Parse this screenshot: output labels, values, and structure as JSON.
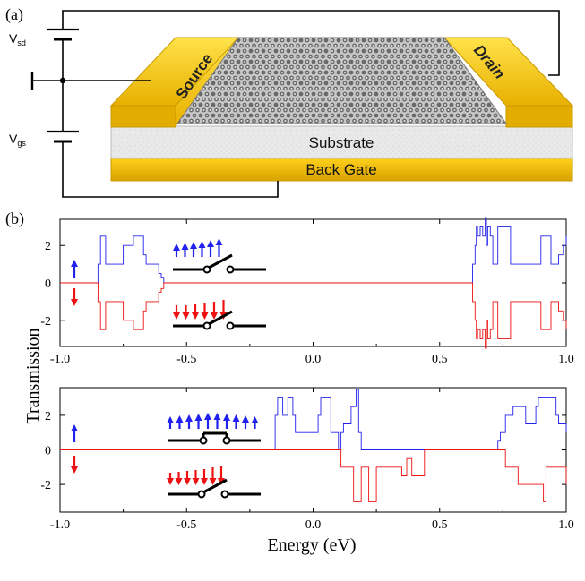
{
  "panel_a": {
    "label": "(a)",
    "vsd_main": "V",
    "vsd_sub": "sd",
    "vgs_main": "V",
    "vgs_sub": "gs",
    "source": "Source",
    "drain": "Drain",
    "substrate": "Substrate",
    "back_gate": "Back Gate"
  },
  "panel_b": {
    "label": "(b)",
    "y_axis_label": "Transmission",
    "x_axis_label": "Energy (eV)"
  },
  "colors": {
    "spin_up": "#2222ee",
    "spin_down": "#ee1111",
    "gold": "#f2c200",
    "gold_dark": "#c99a00",
    "substrate": "#e6e6e6"
  },
  "chart_data": [
    {
      "type": "line",
      "title": "",
      "xlabel": "",
      "ylabel": "Transmission",
      "xlim": [
        -1.0,
        1.0
      ],
      "ylim": [
        -3.4,
        3.4
      ],
      "xticks": [
        -1.0,
        -0.5,
        0.0,
        0.5,
        1.0
      ],
      "xtick_labels": [
        "-1.0",
        "-0.5",
        "0.0",
        "0.5",
        "1.0"
      ],
      "yticks": [
        2,
        0,
        -2
      ],
      "ytick_labels": [
        "2",
        "0",
        "-2"
      ],
      "series": [
        {
          "name": "spin up",
          "color": "#2222ee",
          "x": [
            -1.0,
            -0.86,
            -0.85,
            -0.84,
            -0.83,
            -0.82,
            -0.76,
            -0.75,
            -0.72,
            -0.71,
            -0.7,
            -0.69,
            -0.67,
            -0.66,
            -0.62,
            -0.61,
            -0.6,
            -0.59,
            -0.58,
            0.62,
            0.63,
            0.64,
            0.645,
            0.65,
            0.66,
            0.67,
            0.68,
            0.685,
            0.69,
            0.7,
            0.71,
            0.72,
            0.73,
            0.76,
            0.78,
            0.8,
            0.84,
            0.88,
            0.9,
            0.92,
            0.93,
            0.94,
            0.95,
            0.97,
            0.99,
            1.0
          ],
          "y": [
            0,
            0,
            1,
            2.5,
            2.5,
            1,
            1,
            2,
            2,
            2.5,
            2.5,
            2.5,
            1.5,
            1,
            1,
            0.5,
            0.3,
            0,
            0,
            0,
            1,
            2,
            3,
            2.5,
            3,
            2.5,
            3.5,
            2,
            3,
            2.5,
            1,
            1,
            3,
            3,
            1,
            1,
            1,
            1,
            2.5,
            2.5,
            2.5,
            1,
            1,
            1.5,
            2,
            2.5
          ]
        },
        {
          "name": "spin down",
          "color": "#ee1111",
          "x": [
            -1.0,
            -0.86,
            -0.85,
            -0.84,
            -0.83,
            -0.82,
            -0.76,
            -0.75,
            -0.72,
            -0.71,
            -0.7,
            -0.69,
            -0.67,
            -0.66,
            -0.62,
            -0.61,
            -0.6,
            -0.59,
            -0.58,
            0.62,
            0.63,
            0.64,
            0.645,
            0.65,
            0.66,
            0.67,
            0.68,
            0.685,
            0.69,
            0.7,
            0.71,
            0.72,
            0.73,
            0.76,
            0.78,
            0.8,
            0.84,
            0.88,
            0.9,
            0.92,
            0.93,
            0.94,
            0.95,
            0.97,
            0.99,
            1.0
          ],
          "y": [
            0,
            0,
            -1,
            -2.5,
            -2.5,
            -1,
            -1,
            -2,
            -2,
            -2.5,
            -2.5,
            -2.5,
            -1.5,
            -1,
            -1,
            -0.5,
            -0.3,
            0,
            0,
            0,
            -1,
            -2,
            -3,
            -2.5,
            -3,
            -2.5,
            -3.5,
            -2,
            -3,
            -2.5,
            -1,
            -1,
            -3,
            -3,
            -1,
            -1,
            -1,
            -1,
            -2.5,
            -2.5,
            -2.5,
            -1,
            -1,
            -1.5,
            -2,
            -2.5
          ]
        }
      ]
    },
    {
      "type": "line",
      "title": "",
      "xlabel": "Energy (eV)",
      "ylabel": "Transmission",
      "xlim": [
        -1.0,
        1.0
      ],
      "ylim": [
        -3.6,
        3.6
      ],
      "xticks": [
        -1.0,
        -0.5,
        0.0,
        0.5,
        1.0
      ],
      "xtick_labels": [
        "-1.0",
        "-0.5",
        "0.0",
        "0.5",
        "1.0"
      ],
      "yticks": [
        2,
        0,
        -2
      ],
      "ytick_labels": [
        "2",
        "0",
        "-2"
      ],
      "series": [
        {
          "name": "spin up",
          "color": "#2222ee",
          "x": [
            -1.0,
            -0.16,
            -0.15,
            -0.14,
            -0.13,
            -0.12,
            -0.11,
            -0.1,
            -0.09,
            -0.08,
            -0.07,
            -0.06,
            -0.05,
            -0.04,
            0.01,
            0.02,
            0.03,
            0.06,
            0.07,
            0.09,
            0.1,
            0.11,
            0.12,
            0.13,
            0.14,
            0.15,
            0.16,
            0.17,
            0.18,
            0.19,
            0.2,
            0.72,
            0.73,
            0.74,
            0.75,
            0.76,
            0.77,
            0.79,
            0.8,
            0.84,
            0.85,
            0.88,
            0.89,
            0.9,
            0.91,
            0.95,
            0.96,
            0.97,
            0.99,
            1.0
          ],
          "y": [
            0,
            0,
            2,
            3,
            3,
            2,
            2,
            3,
            3,
            2,
            1,
            1,
            1,
            1,
            1,
            2,
            3,
            3,
            1,
            1,
            0,
            1,
            1.5,
            1.5,
            1.5,
            2.5,
            2.5,
            3.5,
            1,
            0,
            0,
            0,
            0.5,
            1,
            1,
            2,
            2,
            2.5,
            2.5,
            1.5,
            1.5,
            2.5,
            3,
            3,
            3,
            3,
            2,
            1.5,
            1.5,
            1
          ]
        },
        {
          "name": "spin down",
          "color": "#ee1111",
          "x": [
            -1.0,
            0.1,
            0.11,
            0.15,
            0.16,
            0.18,
            0.19,
            0.21,
            0.22,
            0.23,
            0.24,
            0.25,
            0.3,
            0.31,
            0.34,
            0.35,
            0.36,
            0.37,
            0.38,
            0.39,
            0.43,
            0.44,
            0.75,
            0.76,
            0.8,
            0.81,
            0.9,
            0.91,
            0.92,
            0.95,
            0.96,
            0.99,
            1.0
          ],
          "y": [
            0,
            0,
            -1,
            -1,
            -3,
            -3,
            -1,
            -1,
            -3,
            -3,
            -3,
            -1,
            -1,
            -1,
            -1,
            -1.5,
            -1.5,
            -0.5,
            -0.5,
            -1.5,
            -1.5,
            0,
            0,
            -1,
            -1,
            -2,
            -2,
            -3,
            -1,
            -1,
            -1,
            -1,
            -2
          ]
        }
      ]
    }
  ]
}
